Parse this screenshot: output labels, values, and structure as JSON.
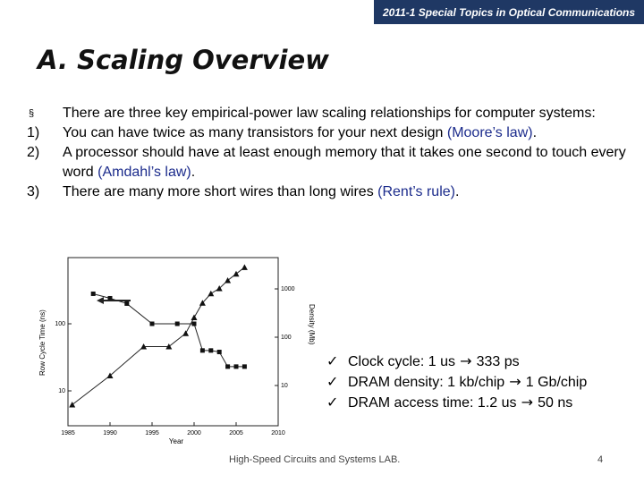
{
  "header": {
    "course": "2011-1 Special Topics in Optical Communications"
  },
  "slide": {
    "title": "A. Scaling Overview"
  },
  "bullets": [
    {
      "marker": "§",
      "parts": [
        {
          "text": "There are three key empirical-power law scaling relationships for computer systems:",
          "hl": false
        }
      ]
    },
    {
      "marker": "1)",
      "parts": [
        {
          "text": "You can have twice as many transistors for your next design ",
          "hl": false
        },
        {
          "text": "(Moore’s law)",
          "hl": true
        },
        {
          "text": ".",
          "hl": false
        }
      ]
    },
    {
      "marker": "2)",
      "parts": [
        {
          "text": "A processor should have at least enough memory that it takes one second to touch every word ",
          "hl": false
        },
        {
          "text": "(Amdahl’s law)",
          "hl": true
        },
        {
          "text": ".",
          "hl": false
        }
      ]
    },
    {
      "marker": "3)",
      "parts": [
        {
          "text": "There are many more short wires than long wires ",
          "hl": false
        },
        {
          "text": "(Rent’s rule)",
          "hl": true
        },
        {
          "text": ".",
          "hl": false
        }
      ]
    }
  ],
  "chart_data": {
    "type": "line",
    "xlabel": "Year",
    "ylabel_left": "Row Cycle Time (ns)",
    "ylabel_right": "Density (Mb)",
    "x_ticks": [
      "1985",
      "1990",
      "1995",
      "2000",
      "2005",
      "2010"
    ],
    "y_left_ticks": [
      "100",
      "10"
    ],
    "y_right_ticks": [
      "1000",
      "100",
      "10"
    ],
    "xlim": [
      1985,
      2010
    ],
    "series": [
      {
        "marker": "square",
        "axis": "left",
        "x": [
          1988,
          1990,
          1992,
          1995,
          1998,
          2000,
          2001,
          2002,
          2003,
          2004,
          2005,
          2006
        ],
        "y": [
          280,
          240,
          200,
          100,
          100,
          100,
          40,
          40,
          38,
          23,
          23,
          23
        ]
      },
      {
        "marker": "triangle",
        "axis": "right",
        "x": [
          1985.5,
          1990,
          1994,
          1997,
          1999,
          2000,
          2001,
          2002,
          2003,
          2004,
          2005,
          2006
        ],
        "y": [
          4,
          16,
          64,
          64,
          120,
          256,
          512,
          800,
          1024,
          1500,
          2048,
          2800
        ]
      }
    ],
    "annotation_arrow": "left"
  },
  "checks": [
    {
      "mark": "ü",
      "a": "Clock cycle: 1 us",
      "b": "333 ps"
    },
    {
      "mark": "ü",
      "a": "DRAM density: 1 kb/chip",
      "b": "1 Gb/chip"
    },
    {
      "mark": "ü",
      "a": "DRAM access time: 1.2 us",
      "b": "50 ns"
    }
  ],
  "footer": {
    "lab": "High-Speed Circuits and Systems LAB.",
    "page": "4"
  }
}
